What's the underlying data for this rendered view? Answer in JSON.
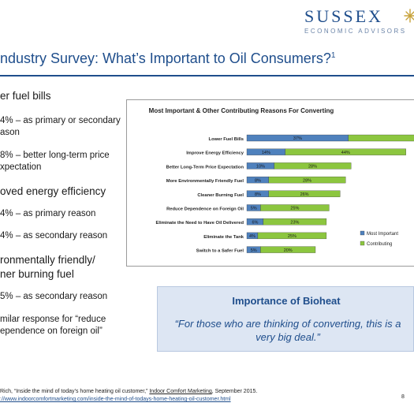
{
  "logo": {
    "name": "SUSSEX",
    "tagline": "ECONOMIC ADVISORS"
  },
  "title": "ndustry Survey: What’s Important to Oil Consumers?",
  "title_sup": "1",
  "bullets": [
    {
      "level": 1,
      "text": "er fuel bills"
    },
    {
      "level": 2,
      "text": "4% – as primary or secondary"
    },
    {
      "level": 2,
      "text": "ason"
    },
    {
      "level": 2,
      "text": "8% – better long-term price"
    },
    {
      "level": 2,
      "text": "xpectation"
    },
    {
      "level": 1,
      "text": "oved energy efficiency"
    },
    {
      "level": 2,
      "text": "4% – as primary reason"
    },
    {
      "level": 2,
      "text": "4% – as secondary reason"
    },
    {
      "level": 1,
      "text": "ronmentally friendly/"
    },
    {
      "level": 1,
      "text": "ner burning fuel"
    },
    {
      "level": 2,
      "text": "5% – as secondary reason"
    },
    {
      "level": 2,
      "text": "milar response for “reduce"
    },
    {
      "level": 2,
      "text": "ependence on foreign oil”"
    }
  ],
  "chart_data": {
    "type": "bar",
    "orientation": "horizontal",
    "stacked": true,
    "title": "Most Important & Other Contributing Reasons For Converting",
    "categories": [
      "Lower Fuel Bills",
      "Improve Energy Efficiency",
      "Better Long-Term Price Expectation",
      "More Environmentally Friendly Fuel",
      "Cleaner Burning Fuel",
      "Reduce Dependence on Foreign Oil",
      "Eliminate the Need to Have Oil Delivered",
      "Eliminate the Tank",
      "Switch to a Safer Fuel"
    ],
    "series": [
      {
        "name": "Most Important",
        "color": "#4f81bd",
        "values": [
          37,
          14,
          10,
          8,
          8,
          5,
          6,
          4,
          5
        ],
        "labels": [
          "37%",
          "14%",
          "10%",
          "8%",
          "8%",
          "5%",
          "6%",
          "4%",
          "5%"
        ]
      },
      {
        "name": "Contributing",
        "color": "#8cc63f",
        "values": [
          58,
          44,
          28,
          28,
          26,
          25,
          23,
          25,
          20
        ],
        "labels": [
          "58%",
          "44%",
          "28%",
          "28%",
          "26%",
          "25%",
          "23%",
          "25%",
          "20%"
        ]
      }
    ],
    "xlim": [
      0,
      100
    ],
    "grid": false,
    "legend": "right"
  },
  "callout": {
    "title": "Importance of Bioheat",
    "quote": "“For those who are thinking of converting, this is a very big deal.”"
  },
  "footnote": {
    "line1_prefix": "Rich, “Inside the mind of today’s home heating oil customer,” ",
    "line1_pub": "Indoor Comfort Marketing",
    "line1_suffix": ", September 2015.",
    "line2": "://www.indoorcomfortmarketing.com/inside-the-mind-of-todays-home-heating-oil-customer.html"
  },
  "page_number": "8"
}
